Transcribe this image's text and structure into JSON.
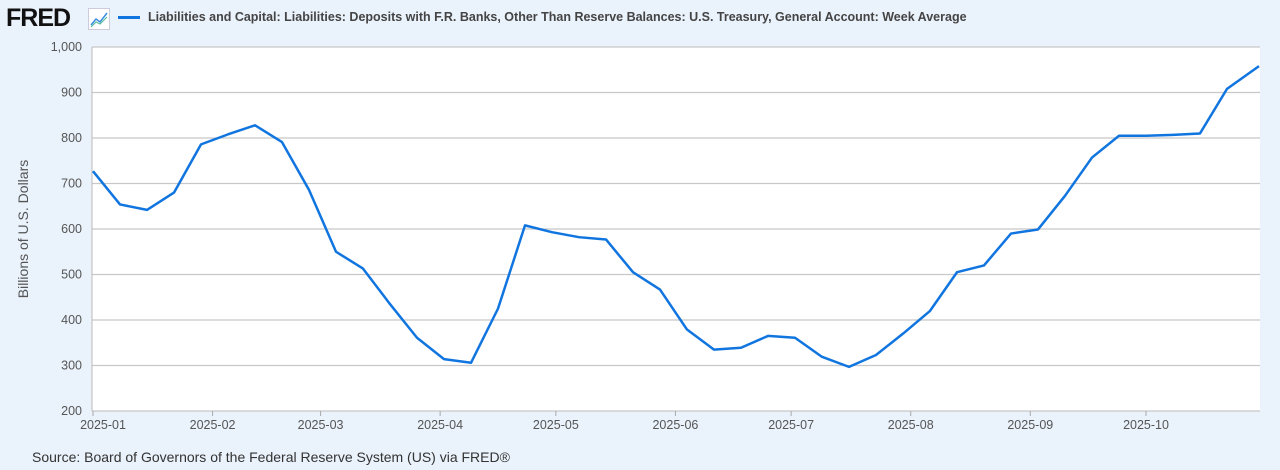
{
  "header": {
    "logo": "FRED",
    "legend_label": "Liabilities and Capital: Liabilities: Deposits with F.R. Banks, Other Than Reserve Balances: U.S. Treasury, General Account: Week Average"
  },
  "source": "Source: Board of Governors of the Federal Reserve System (US) via FRED®",
  "colors": {
    "series": "#1175e0",
    "background": "#eaf2fb"
  },
  "chart_data": {
    "type": "line",
    "title": "Liabilities and Capital: Liabilities: Deposits with F.R. Banks, Other Than Reserve Balances: U.S. Treasury, General Account: Week Average",
    "xlabel": "",
    "ylabel": "Billions of U.S. Dollars",
    "ylim": [
      200,
      1000
    ],
    "yticks": [
      "200",
      "300",
      "400",
      "500",
      "600",
      "700",
      "800",
      "900",
      "1,000"
    ],
    "xticks": [
      "2025-01",
      "2025-02",
      "2025-03",
      "2025-04",
      "2025-05",
      "2025-06",
      "2025-07",
      "2025-08",
      "2025-09",
      "2025-10"
    ],
    "x_start": "2025-01-01",
    "x_step_days": 7,
    "series": [
      {
        "name": "Week Average",
        "values": [
          727,
          654,
          642,
          680,
          786,
          808,
          828,
          791,
          686,
          550,
          513,
          435,
          361,
          314,
          306,
          425,
          608,
          593,
          582,
          577,
          505,
          467,
          379,
          335,
          339,
          365,
          361,
          319,
          297,
          323,
          370,
          420,
          505,
          520,
          590,
          599,
          673,
          757,
          805,
          805,
          807,
          810,
          908,
          958
        ]
      }
    ],
    "grid": true
  }
}
